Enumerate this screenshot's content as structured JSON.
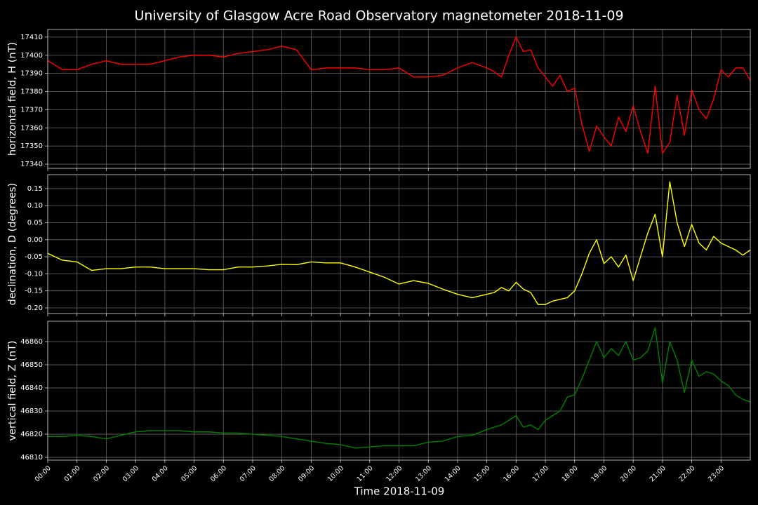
{
  "chart_data": [
    {
      "type": "line",
      "title": "University of Glasgow Acre Road Observatory magnetometer 2018-11-09",
      "ylabel": "horizontal field, H (nT)",
      "x": [
        0,
        0.5,
        1,
        1.5,
        2,
        2.5,
        3,
        3.5,
        4,
        4.5,
        5,
        5.5,
        6,
        6.5,
        7,
        7.5,
        8,
        8.5,
        9,
        9.5,
        10,
        10.5,
        11,
        11.5,
        12,
        12.5,
        13,
        13.5,
        14,
        14.5,
        15,
        15.25,
        15.5,
        15.75,
        16,
        16.25,
        16.5,
        16.75,
        17,
        17.25,
        17.5,
        17.75,
        18,
        18.25,
        18.5,
        18.75,
        19,
        19.25,
        19.5,
        19.75,
        20,
        20.25,
        20.5,
        20.75,
        21,
        21.25,
        21.5,
        21.75,
        22,
        22.25,
        22.5,
        22.75,
        23,
        23.25,
        23.5,
        23.75,
        24
      ],
      "series": [
        {
          "color": "#ff0000",
          "values": [
            17397,
            17392,
            17392,
            17395,
            17397,
            17395,
            17395,
            17395,
            17397,
            17399,
            17400,
            17400,
            17399,
            17401,
            17402,
            17403,
            17405,
            17403,
            17392,
            17393,
            17393,
            17393,
            17392,
            17392,
            17393,
            17388,
            17388,
            17389,
            17393,
            17396,
            17393,
            17391,
            17388,
            17400,
            17410,
            17402,
            17403,
            17393,
            17388,
            17383,
            17389,
            17380,
            17382,
            17362,
            17347,
            17361,
            17355,
            17350,
            17366,
            17358,
            17372,
            17358,
            17346,
            17383,
            17346,
            17352,
            17378,
            17356,
            17381,
            17370,
            17365,
            17376,
            17392,
            17388,
            17393,
            17393,
            17386
          ]
        }
      ],
      "xlim": [
        0,
        24
      ],
      "ylim": [
        17337.7,
        17414.2
      ],
      "yticks": [
        17340,
        17350,
        17360,
        17370,
        17380,
        17390,
        17400,
        17410
      ],
      "grid": true
    },
    {
      "type": "line",
      "ylabel": "declination, D (degrees)",
      "x": [
        0,
        0.5,
        1,
        1.5,
        2,
        2.5,
        3,
        3.5,
        4,
        4.5,
        5,
        5.5,
        6,
        6.5,
        7,
        7.5,
        8,
        8.5,
        9,
        9.5,
        10,
        10.5,
        11,
        11.5,
        12,
        12.5,
        13,
        13.5,
        14,
        14.5,
        15,
        15.25,
        15.5,
        15.75,
        16,
        16.25,
        16.5,
        16.75,
        17,
        17.25,
        17.5,
        17.75,
        18,
        18.25,
        18.5,
        18.75,
        19,
        19.25,
        19.5,
        19.75,
        20,
        20.25,
        20.5,
        20.75,
        21,
        21.25,
        21.5,
        21.75,
        22,
        22.25,
        22.5,
        22.75,
        23,
        23.25,
        23.5,
        23.75,
        24
      ],
      "series": [
        {
          "color": "#ffff00",
          "values": [
            -0.04,
            -0.06,
            -0.065,
            -0.09,
            -0.085,
            -0.085,
            -0.08,
            -0.08,
            -0.085,
            -0.085,
            -0.085,
            -0.088,
            -0.088,
            -0.08,
            -0.08,
            -0.077,
            -0.072,
            -0.073,
            -0.065,
            -0.068,
            -0.068,
            -0.08,
            -0.095,
            -0.11,
            -0.13,
            -0.12,
            -0.128,
            -0.145,
            -0.16,
            -0.17,
            -0.16,
            -0.155,
            -0.14,
            -0.15,
            -0.125,
            -0.145,
            -0.155,
            -0.19,
            -0.19,
            -0.18,
            -0.175,
            -0.17,
            -0.15,
            -0.1,
            -0.04,
            0.0,
            -0.07,
            -0.05,
            -0.08,
            -0.045,
            -0.12,
            -0.05,
            0.02,
            0.075,
            -0.05,
            0.17,
            0.05,
            -0.02,
            0.045,
            -0.01,
            -0.03,
            0.01,
            -0.01,
            -0.02,
            -0.03,
            -0.045,
            -0.03
          ]
        }
      ],
      "xlim": [
        0,
        24
      ],
      "ylim": [
        -0.2165,
        0.191
      ],
      "yticks": [
        {
          "value": -0.2,
          "label": "-0.20"
        },
        -0.15,
        {
          "value": -0.1,
          "label": "-0.10"
        },
        -0.05,
        {
          "value": 0,
          "label": "0.00"
        },
        0.05,
        {
          "value": 0.1,
          "label": "0.10"
        },
        0.15
      ],
      "grid": true
    },
    {
      "type": "line",
      "ylabel": "vertical field, Z (nT)",
      "xlabel": "Time 2018-11-09",
      "x": [
        0,
        0.5,
        1,
        1.5,
        2,
        2.5,
        3,
        3.5,
        4,
        4.5,
        5,
        5.5,
        6,
        6.5,
        7,
        7.5,
        8,
        8.5,
        9,
        9.5,
        10,
        10.5,
        11,
        11.5,
        12,
        12.5,
        13,
        13.5,
        14,
        14.5,
        15,
        15.25,
        15.5,
        15.75,
        16,
        16.25,
        16.5,
        16.75,
        17,
        17.25,
        17.5,
        17.75,
        18,
        18.25,
        18.5,
        18.75,
        19,
        19.25,
        19.5,
        19.75,
        20,
        20.25,
        20.5,
        20.75,
        21,
        21.25,
        21.5,
        21.75,
        22,
        22.25,
        22.5,
        22.75,
        23,
        23.25,
        23.5,
        23.75,
        24
      ],
      "series": [
        {
          "color": "#008000",
          "values": [
            46819,
            46819,
            46819.5,
            46819,
            46818,
            46819.5,
            46821,
            46821.5,
            46821.5,
            46821.5,
            46821,
            46821,
            46820.5,
            46820.5,
            46820,
            46819.5,
            46819,
            46818,
            46817,
            46816,
            46815.5,
            46814,
            46814.5,
            46815,
            46815,
            46815,
            46816.5,
            46817,
            46819,
            46819.5,
            46822,
            46823,
            46824,
            46826,
            46828,
            46823,
            46824,
            46822,
            46826,
            46828,
            46830,
            46836,
            46837,
            46844,
            46852,
            46860,
            46853,
            46857,
            46854,
            46860,
            46852,
            46853,
            46856,
            46866,
            46842,
            46860,
            46852,
            46838,
            46852,
            46845,
            46847,
            46846,
            46843,
            46841,
            46837,
            46835,
            46834
          ]
        }
      ],
      "xlim": [
        0,
        24
      ],
      "ylim": [
        46808.8,
        46868.8
      ],
      "yticks": [
        46810,
        46820,
        46830,
        46840,
        46850,
        46860
      ],
      "grid": true,
      "xticks": [
        {
          "value": 0,
          "label": "00:00"
        },
        {
          "value": 1,
          "label": "01:00"
        },
        {
          "value": 2,
          "label": "02:00"
        },
        {
          "value": 3,
          "label": "03:00"
        },
        {
          "value": 4,
          "label": "04:00"
        },
        {
          "value": 5,
          "label": "05:00"
        },
        {
          "value": 6,
          "label": "06:00"
        },
        {
          "value": 7,
          "label": "07:00"
        },
        {
          "value": 8,
          "label": "08:00"
        },
        {
          "value": 9,
          "label": "09:00"
        },
        {
          "value": 10,
          "label": "10:00"
        },
        {
          "value": 11,
          "label": "11:00"
        },
        {
          "value": 12,
          "label": "12:00"
        },
        {
          "value": 13,
          "label": "13:00"
        },
        {
          "value": 14,
          "label": "14:00"
        },
        {
          "value": 15,
          "label": "15:00"
        },
        {
          "value": 16,
          "label": "16:00"
        },
        {
          "value": 17,
          "label": "17:00"
        },
        {
          "value": 18,
          "label": "18:00"
        },
        {
          "value": 19,
          "label": "19:00"
        },
        {
          "value": 20,
          "label": "20:00"
        },
        {
          "value": 21,
          "label": "21:00"
        },
        {
          "value": 22,
          "label": "22:00"
        },
        {
          "value": 23,
          "label": "23:00"
        }
      ]
    }
  ]
}
